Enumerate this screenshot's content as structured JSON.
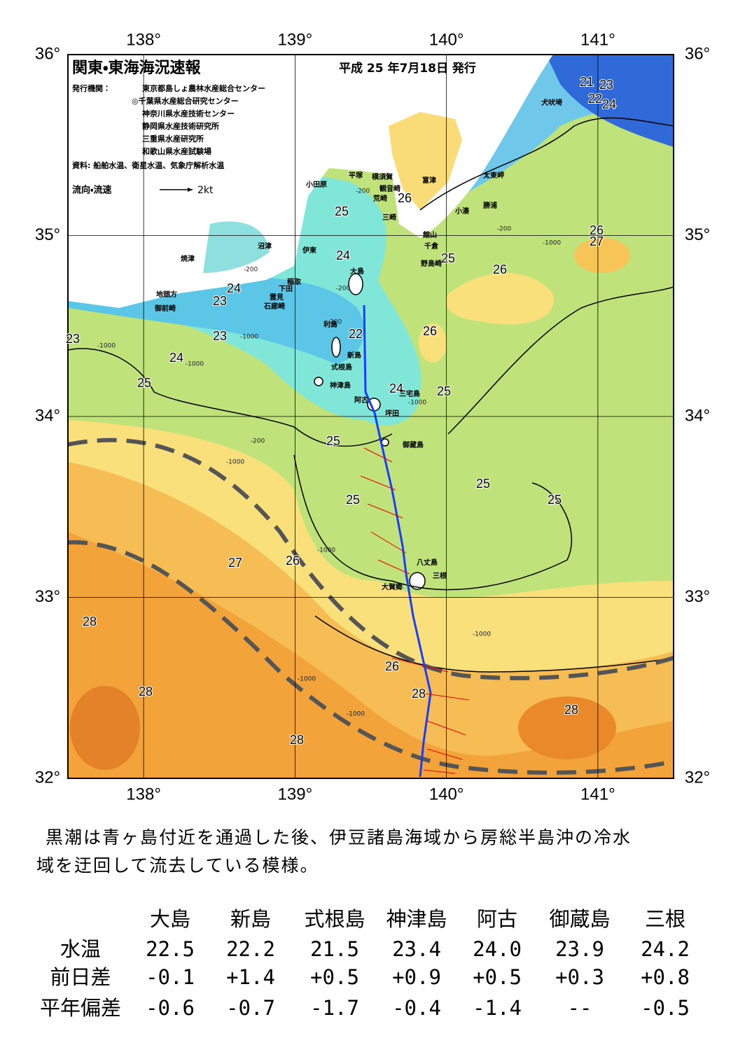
{
  "header": {
    "title": "関東・東海海況速報",
    "date": "平成 25 年7月18日 発行",
    "issuer_label": "発行機関：",
    "issuers": [
      "東京都島しょ農林水産総合センター",
      "◎千葉県水産総合研究センター",
      "神奈川県水産技術センター",
      "静岡県水産技術研究所",
      "三重県水産研究所",
      "和歌山県水産試験場"
    ],
    "source": "資料: 船舶水温、衛星水温、気象庁解析水温",
    "legend_label": "流向・流速",
    "legend_scale": "2kt"
  },
  "map": {
    "xlim": [
      137.5,
      141.5
    ],
    "ylim": [
      32,
      36
    ],
    "xticks": [
      {
        "value": 138,
        "label": "138°"
      },
      {
        "value": 139,
        "label": "139°"
      },
      {
        "value": 140,
        "label": "140°"
      },
      {
        "value": 141,
        "label": "141°"
      }
    ],
    "yticks": [
      {
        "value": 32,
        "label": "32°"
      },
      {
        "value": 33,
        "label": "33°"
      },
      {
        "value": 34,
        "label": "34°"
      },
      {
        "value": 35,
        "label": "35°"
      },
      {
        "value": 36,
        "label": "36°"
      }
    ],
    "contour_labels": [
      "21",
      "23",
      "22",
      "24",
      "26",
      "25",
      "24",
      "25",
      "26",
      "27",
      "26",
      "24",
      "23",
      "22",
      "26",
      "23",
      "23",
      "24",
      "25",
      "24",
      "25",
      "25",
      "25",
      "25",
      "25",
      "27",
      "26",
      "28",
      "26",
      "28",
      "28",
      "28",
      "28"
    ],
    "depth_labels": [
      "-200",
      "-200",
      "-1000",
      "-200",
      "-200",
      "-200",
      "-1000",
      "-1000",
      "-1000",
      "-1000",
      "-200",
      "-1000",
      "-1000",
      "-1000",
      "-1000",
      "-1000"
    ],
    "place_names": [
      "小田原",
      "平塚",
      "横須賀",
      "観音崎",
      "富津",
      "荒崎",
      "三崎",
      "太東岬",
      "勝浦",
      "小湊",
      "館山",
      "千倉",
      "野島崎",
      "犬吠埼",
      "沼津",
      "焼津",
      "伊東",
      "稲取",
      "下田",
      "雲見",
      "石廊崎",
      "地頭方",
      "御前崎",
      "大島",
      "利島",
      "新島",
      "式根島",
      "神津島",
      "三宅島",
      "阿古",
      "坪田",
      "御蔵島",
      "八丈島",
      "三根",
      "大賀郷"
    ]
  },
  "summary_lines": [
    "黒潮は青ヶ島付近を通過した後、伊豆諸島海域から房総半島沖の冷水",
    "域を迂回して流去している模様。"
  ],
  "table": {
    "columns": [
      "大島",
      "新島",
      "式根島",
      "神津島",
      "阿古",
      "御蔵島",
      "三根"
    ],
    "rows": [
      {
        "label": "水温",
        "cells": [
          "22.5",
          "22.2",
          "21.5",
          "23.4",
          "24.0",
          "23.9",
          "24.2"
        ]
      },
      {
        "label": "前日差",
        "cells": [
          "-0.1",
          "+1.4",
          "+0.5",
          "+0.9",
          "+0.5",
          "+0.3",
          "+0.8"
        ]
      },
      {
        "label": "平年偏差",
        "cells": [
          "-0.6",
          "-0.7",
          "-1.7",
          "-0.4",
          "-1.4",
          "--",
          "-0.5"
        ]
      }
    ]
  }
}
